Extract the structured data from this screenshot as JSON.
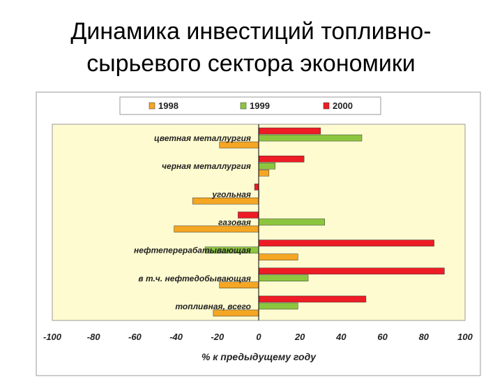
{
  "slide": {
    "title_line1": "Динамика инвестиций топливно-",
    "title_line2": "сырьевого сектора экономики"
  },
  "chart_data": {
    "type": "bar",
    "orientation": "horizontal",
    "categories": [
      "цветная металлургия",
      "черная металлургия",
      "угольная",
      "газовая",
      "нефтеперерабатывающая",
      "в т.ч. нефтедобывающая",
      "топливная, всего"
    ],
    "series": [
      {
        "name": "1998",
        "color": "#f5a623",
        "values": [
          -19,
          5,
          -32,
          -41,
          19,
          -19,
          -22
        ]
      },
      {
        "name": "1999",
        "color": "#8cc63f",
        "values": [
          50,
          8,
          0,
          32,
          -26,
          24,
          19
        ]
      },
      {
        "name": "2000",
        "color": "#ee1c25",
        "values": [
          30,
          22,
          -2,
          -10,
          85,
          90,
          52
        ]
      }
    ],
    "xlim": [
      -100,
      100
    ],
    "xticks": [
      "-100",
      "-80",
      "-60",
      "-40",
      "-20",
      "0",
      "20",
      "40",
      "60",
      "80",
      "100"
    ],
    "xlabel": "% к предыдущему году",
    "ylabel": "",
    "grid": false,
    "legend_position": "top",
    "plot_background": "#fefbd0"
  }
}
